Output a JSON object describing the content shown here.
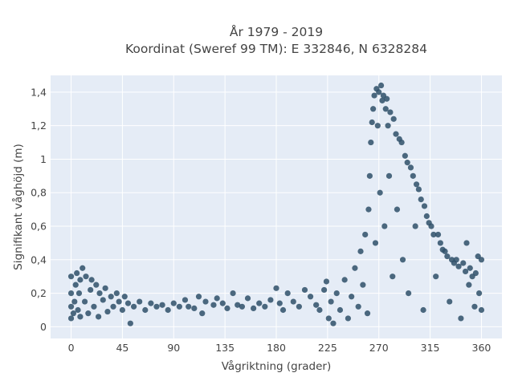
{
  "chart_data": {
    "type": "scatter",
    "title": "År 1979 - 2019",
    "subtitle": "Koordinat (Sweref 99 TM): E 332846, N 6328284",
    "xlabel": "Vågriktning (grader)",
    "ylabel": "Signifikant våghöjd (m)",
    "xlim": [
      -18,
      378
    ],
    "ylim": [
      -0.07,
      1.5
    ],
    "x_ticks": [
      0,
      45,
      90,
      135,
      180,
      225,
      270,
      315,
      360
    ],
    "x_tick_labels": [
      "0",
      "45",
      "90",
      "135",
      "180",
      "225",
      "270",
      "315",
      "360"
    ],
    "y_ticks": [
      0,
      0.2,
      0.4,
      0.6,
      0.8,
      1,
      1.2,
      1.4
    ],
    "y_tick_labels": [
      "0",
      "0,2",
      "0,4",
      "0,6",
      "0,8",
      "1",
      "1,2",
      "1,4"
    ],
    "grid": true,
    "marker_color": "#2f5069",
    "series": [
      {
        "points": [
          [
            0,
            0.05
          ],
          [
            0,
            0.12
          ],
          [
            0,
            0.2
          ],
          [
            0,
            0.3
          ],
          [
            2,
            0.08
          ],
          [
            3,
            0.15
          ],
          [
            4,
            0.25
          ],
          [
            5,
            0.32
          ],
          [
            6,
            0.1
          ],
          [
            7,
            0.2
          ],
          [
            8,
            0.06
          ],
          [
            8,
            0.28
          ],
          [
            10,
            0.35
          ],
          [
            12,
            0.15
          ],
          [
            13,
            0.3
          ],
          [
            15,
            0.08
          ],
          [
            17,
            0.22
          ],
          [
            18,
            0.28
          ],
          [
            20,
            0.12
          ],
          [
            22,
            0.25
          ],
          [
            24,
            0.06
          ],
          [
            25,
            0.2
          ],
          [
            28,
            0.16
          ],
          [
            30,
            0.23
          ],
          [
            32,
            0.09
          ],
          [
            35,
            0.18
          ],
          [
            37,
            0.12
          ],
          [
            40,
            0.2
          ],
          [
            42,
            0.15
          ],
          [
            45,
            0.1
          ],
          [
            47,
            0.18
          ],
          [
            50,
            0.14
          ],
          [
            52,
            0.02
          ],
          [
            55,
            0.12
          ],
          [
            60,
            0.15
          ],
          [
            65,
            0.1
          ],
          [
            70,
            0.14
          ],
          [
            75,
            0.12
          ],
          [
            80,
            0.13
          ],
          [
            85,
            0.1
          ],
          [
            90,
            0.14
          ],
          [
            95,
            0.12
          ],
          [
            100,
            0.16
          ],
          [
            103,
            0.12
          ],
          [
            108,
            0.11
          ],
          [
            112,
            0.18
          ],
          [
            115,
            0.08
          ],
          [
            118,
            0.15
          ],
          [
            125,
            0.13
          ],
          [
            128,
            0.17
          ],
          [
            133,
            0.14
          ],
          [
            137,
            0.11
          ],
          [
            142,
            0.2
          ],
          [
            146,
            0.13
          ],
          [
            150,
            0.12
          ],
          [
            155,
            0.17
          ],
          [
            160,
            0.11
          ],
          [
            165,
            0.14
          ],
          [
            170,
            0.12
          ],
          [
            175,
            0.16
          ],
          [
            180,
            0.23
          ],
          [
            183,
            0.14
          ],
          [
            186,
            0.1
          ],
          [
            190,
            0.2
          ],
          [
            195,
            0.15
          ],
          [
            200,
            0.12
          ],
          [
            205,
            0.22
          ],
          [
            210,
            0.18
          ],
          [
            215,
            0.13
          ],
          [
            218,
            0.1
          ],
          [
            222,
            0.22
          ],
          [
            224,
            0.27
          ],
          [
            226,
            0.05
          ],
          [
            228,
            0.15
          ],
          [
            230,
            0.02
          ],
          [
            233,
            0.2
          ],
          [
            236,
            0.1
          ],
          [
            240,
            0.28
          ],
          [
            243,
            0.05
          ],
          [
            246,
            0.18
          ],
          [
            249,
            0.35
          ],
          [
            252,
            0.12
          ],
          [
            254,
            0.45
          ],
          [
            256,
            0.25
          ],
          [
            258,
            0.55
          ],
          [
            260,
            0.08
          ],
          [
            261,
            0.7
          ],
          [
            262,
            0.9
          ],
          [
            263,
            1.1
          ],
          [
            264,
            1.22
          ],
          [
            265,
            1.3
          ],
          [
            266,
            1.38
          ],
          [
            267,
            0.5
          ],
          [
            268,
            1.42
          ],
          [
            269,
            1.2
          ],
          [
            270,
            1.4
          ],
          [
            271,
            0.8
          ],
          [
            272,
            1.44
          ],
          [
            273,
            1.35
          ],
          [
            274,
            1.38
          ],
          [
            275,
            0.6
          ],
          [
            276,
            1.3
          ],
          [
            277,
            1.36
          ],
          [
            278,
            1.2
          ],
          [
            279,
            0.9
          ],
          [
            280,
            1.28
          ],
          [
            282,
            0.3
          ],
          [
            283,
            1.24
          ],
          [
            285,
            1.15
          ],
          [
            286,
            0.7
          ],
          [
            288,
            1.12
          ],
          [
            290,
            1.1
          ],
          [
            291,
            0.4
          ],
          [
            293,
            1.02
          ],
          [
            295,
            0.98
          ],
          [
            296,
            0.2
          ],
          [
            298,
            0.95
          ],
          [
            300,
            0.9
          ],
          [
            302,
            0.6
          ],
          [
            303,
            0.85
          ],
          [
            305,
            0.82
          ],
          [
            307,
            0.76
          ],
          [
            309,
            0.1
          ],
          [
            310,
            0.72
          ],
          [
            312,
            0.66
          ],
          [
            314,
            0.62
          ],
          [
            316,
            0.6
          ],
          [
            318,
            0.55
          ],
          [
            320,
            0.3
          ],
          [
            322,
            0.55
          ],
          [
            324,
            0.5
          ],
          [
            326,
            0.46
          ],
          [
            328,
            0.45
          ],
          [
            330,
            0.42
          ],
          [
            332,
            0.15
          ],
          [
            334,
            0.4
          ],
          [
            336,
            0.38
          ],
          [
            338,
            0.4
          ],
          [
            340,
            0.36
          ],
          [
            342,
            0.05
          ],
          [
            344,
            0.38
          ],
          [
            346,
            0.33
          ],
          [
            347,
            0.5
          ],
          [
            349,
            0.25
          ],
          [
            350,
            0.35
          ],
          [
            352,
            0.3
          ],
          [
            354,
            0.12
          ],
          [
            355,
            0.32
          ],
          [
            357,
            0.42
          ],
          [
            358,
            0.2
          ],
          [
            360,
            0.4
          ],
          [
            360,
            0.1
          ]
        ]
      }
    ]
  }
}
